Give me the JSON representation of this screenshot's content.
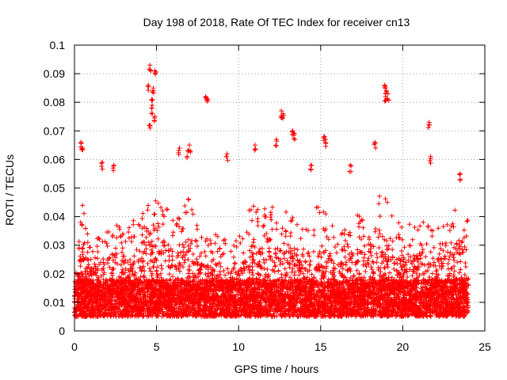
{
  "chart_data": {
    "type": "scatter",
    "title": "Day 198 of 2018, Rate Of TEC Index for receiver cn13",
    "xlabel": "GPS time / hours",
    "ylabel": "ROTI / TECUs",
    "xlim": [
      0,
      25
    ],
    "ylim": [
      0,
      0.1
    ],
    "x_ticks": [
      0,
      5,
      10,
      15,
      20,
      25
    ],
    "x_tick_labels": [
      "0",
      "5",
      "10",
      "15",
      "20",
      "25"
    ],
    "y_ticks": [
      0,
      0.01,
      0.02,
      0.03,
      0.04,
      0.05,
      0.06,
      0.07,
      0.08,
      0.09,
      0.1
    ],
    "y_tick_labels": [
      "0",
      "0.01",
      "0.02",
      "0.03",
      "0.04",
      "0.05",
      "0.06",
      "0.07",
      "0.08",
      "0.09",
      "0.1"
    ],
    "grid": true,
    "marker": "+",
    "series_color": "#ff0000",
    "data_range_x": [
      0,
      24
    ],
    "notable_points": [
      {
        "x": 4.6,
        "y": 0.093
      },
      {
        "x": 4.9,
        "y": 0.091
      },
      {
        "x": 4.5,
        "y": 0.086
      },
      {
        "x": 4.8,
        "y": 0.085
      },
      {
        "x": 4.7,
        "y": 0.081
      },
      {
        "x": 4.7,
        "y": 0.078
      },
      {
        "x": 4.9,
        "y": 0.075
      },
      {
        "x": 4.55,
        "y": 0.072
      },
      {
        "x": 8.0,
        "y": 0.082
      },
      {
        "x": 8.1,
        "y": 0.081
      },
      {
        "x": 12.6,
        "y": 0.077
      },
      {
        "x": 12.7,
        "y": 0.076
      },
      {
        "x": 13.3,
        "y": 0.07
      },
      {
        "x": 13.4,
        "y": 0.069
      },
      {
        "x": 15.2,
        "y": 0.068
      },
      {
        "x": 15.3,
        "y": 0.067
      },
      {
        "x": 18.9,
        "y": 0.086
      },
      {
        "x": 19.0,
        "y": 0.084
      },
      {
        "x": 19.1,
        "y": 0.083
      },
      {
        "x": 18.95,
        "y": 0.082
      },
      {
        "x": 21.6,
        "y": 0.073
      },
      {
        "x": 0.4,
        "y": 0.066
      },
      {
        "x": 0.5,
        "y": 0.064
      },
      {
        "x": 11.0,
        "y": 0.065
      },
      {
        "x": 12.3,
        "y": 0.067
      },
      {
        "x": 18.3,
        "y": 0.066
      },
      {
        "x": 7.0,
        "y": 0.065
      },
      {
        "x": 6.4,
        "y": 0.064
      },
      {
        "x": 9.3,
        "y": 0.062
      },
      {
        "x": 1.7,
        "y": 0.059
      },
      {
        "x": 2.4,
        "y": 0.058
      },
      {
        "x": 16.8,
        "y": 0.058
      },
      {
        "x": 21.7,
        "y": 0.061
      },
      {
        "x": 23.5,
        "y": 0.055
      },
      {
        "x": 6.9,
        "y": 0.063
      },
      {
        "x": 14.4,
        "y": 0.058
      }
    ],
    "activity_envelope": [
      {
        "x": 0.0,
        "upper": 0.022
      },
      {
        "x": 0.5,
        "upper": 0.045
      },
      {
        "x": 1.0,
        "upper": 0.03
      },
      {
        "x": 1.5,
        "upper": 0.034
      },
      {
        "x": 2.0,
        "upper": 0.036
      },
      {
        "x": 2.5,
        "upper": 0.04
      },
      {
        "x": 3.0,
        "upper": 0.034
      },
      {
        "x": 3.5,
        "upper": 0.038
      },
      {
        "x": 4.0,
        "upper": 0.042
      },
      {
        "x": 4.5,
        "upper": 0.05
      },
      {
        "x": 5.0,
        "upper": 0.046
      },
      {
        "x": 5.5,
        "upper": 0.046
      },
      {
        "x": 6.0,
        "upper": 0.04
      },
      {
        "x": 6.5,
        "upper": 0.042
      },
      {
        "x": 7.0,
        "upper": 0.05
      },
      {
        "x": 7.5,
        "upper": 0.036
      },
      {
        "x": 8.0,
        "upper": 0.032
      },
      {
        "x": 8.5,
        "upper": 0.036
      },
      {
        "x": 9.0,
        "upper": 0.034
      },
      {
        "x": 9.5,
        "upper": 0.03
      },
      {
        "x": 10.0,
        "upper": 0.034
      },
      {
        "x": 10.5,
        "upper": 0.04
      },
      {
        "x": 11.0,
        "upper": 0.048
      },
      {
        "x": 11.5,
        "upper": 0.042
      },
      {
        "x": 12.0,
        "upper": 0.046
      },
      {
        "x": 12.5,
        "upper": 0.044
      },
      {
        "x": 13.0,
        "upper": 0.044
      },
      {
        "x": 13.5,
        "upper": 0.038
      },
      {
        "x": 14.0,
        "upper": 0.04
      },
      {
        "x": 14.5,
        "upper": 0.044
      },
      {
        "x": 15.0,
        "upper": 0.044
      },
      {
        "x": 15.5,
        "upper": 0.04
      },
      {
        "x": 16.0,
        "upper": 0.034
      },
      {
        "x": 16.5,
        "upper": 0.036
      },
      {
        "x": 17.0,
        "upper": 0.042
      },
      {
        "x": 17.5,
        "upper": 0.04
      },
      {
        "x": 18.0,
        "upper": 0.044
      },
      {
        "x": 18.5,
        "upper": 0.05
      },
      {
        "x": 19.0,
        "upper": 0.046
      },
      {
        "x": 19.5,
        "upper": 0.04
      },
      {
        "x": 20.0,
        "upper": 0.036
      },
      {
        "x": 20.5,
        "upper": 0.038
      },
      {
        "x": 21.0,
        "upper": 0.04
      },
      {
        "x": 21.5,
        "upper": 0.044
      },
      {
        "x": 22.0,
        "upper": 0.036
      },
      {
        "x": 22.5,
        "upper": 0.038
      },
      {
        "x": 23.0,
        "upper": 0.042
      },
      {
        "x": 23.5,
        "upper": 0.046
      },
      {
        "x": 24.0,
        "upper": 0.04
      }
    ],
    "baseline": {
      "typical_low": 0.005,
      "typical_center": 0.012
    }
  }
}
